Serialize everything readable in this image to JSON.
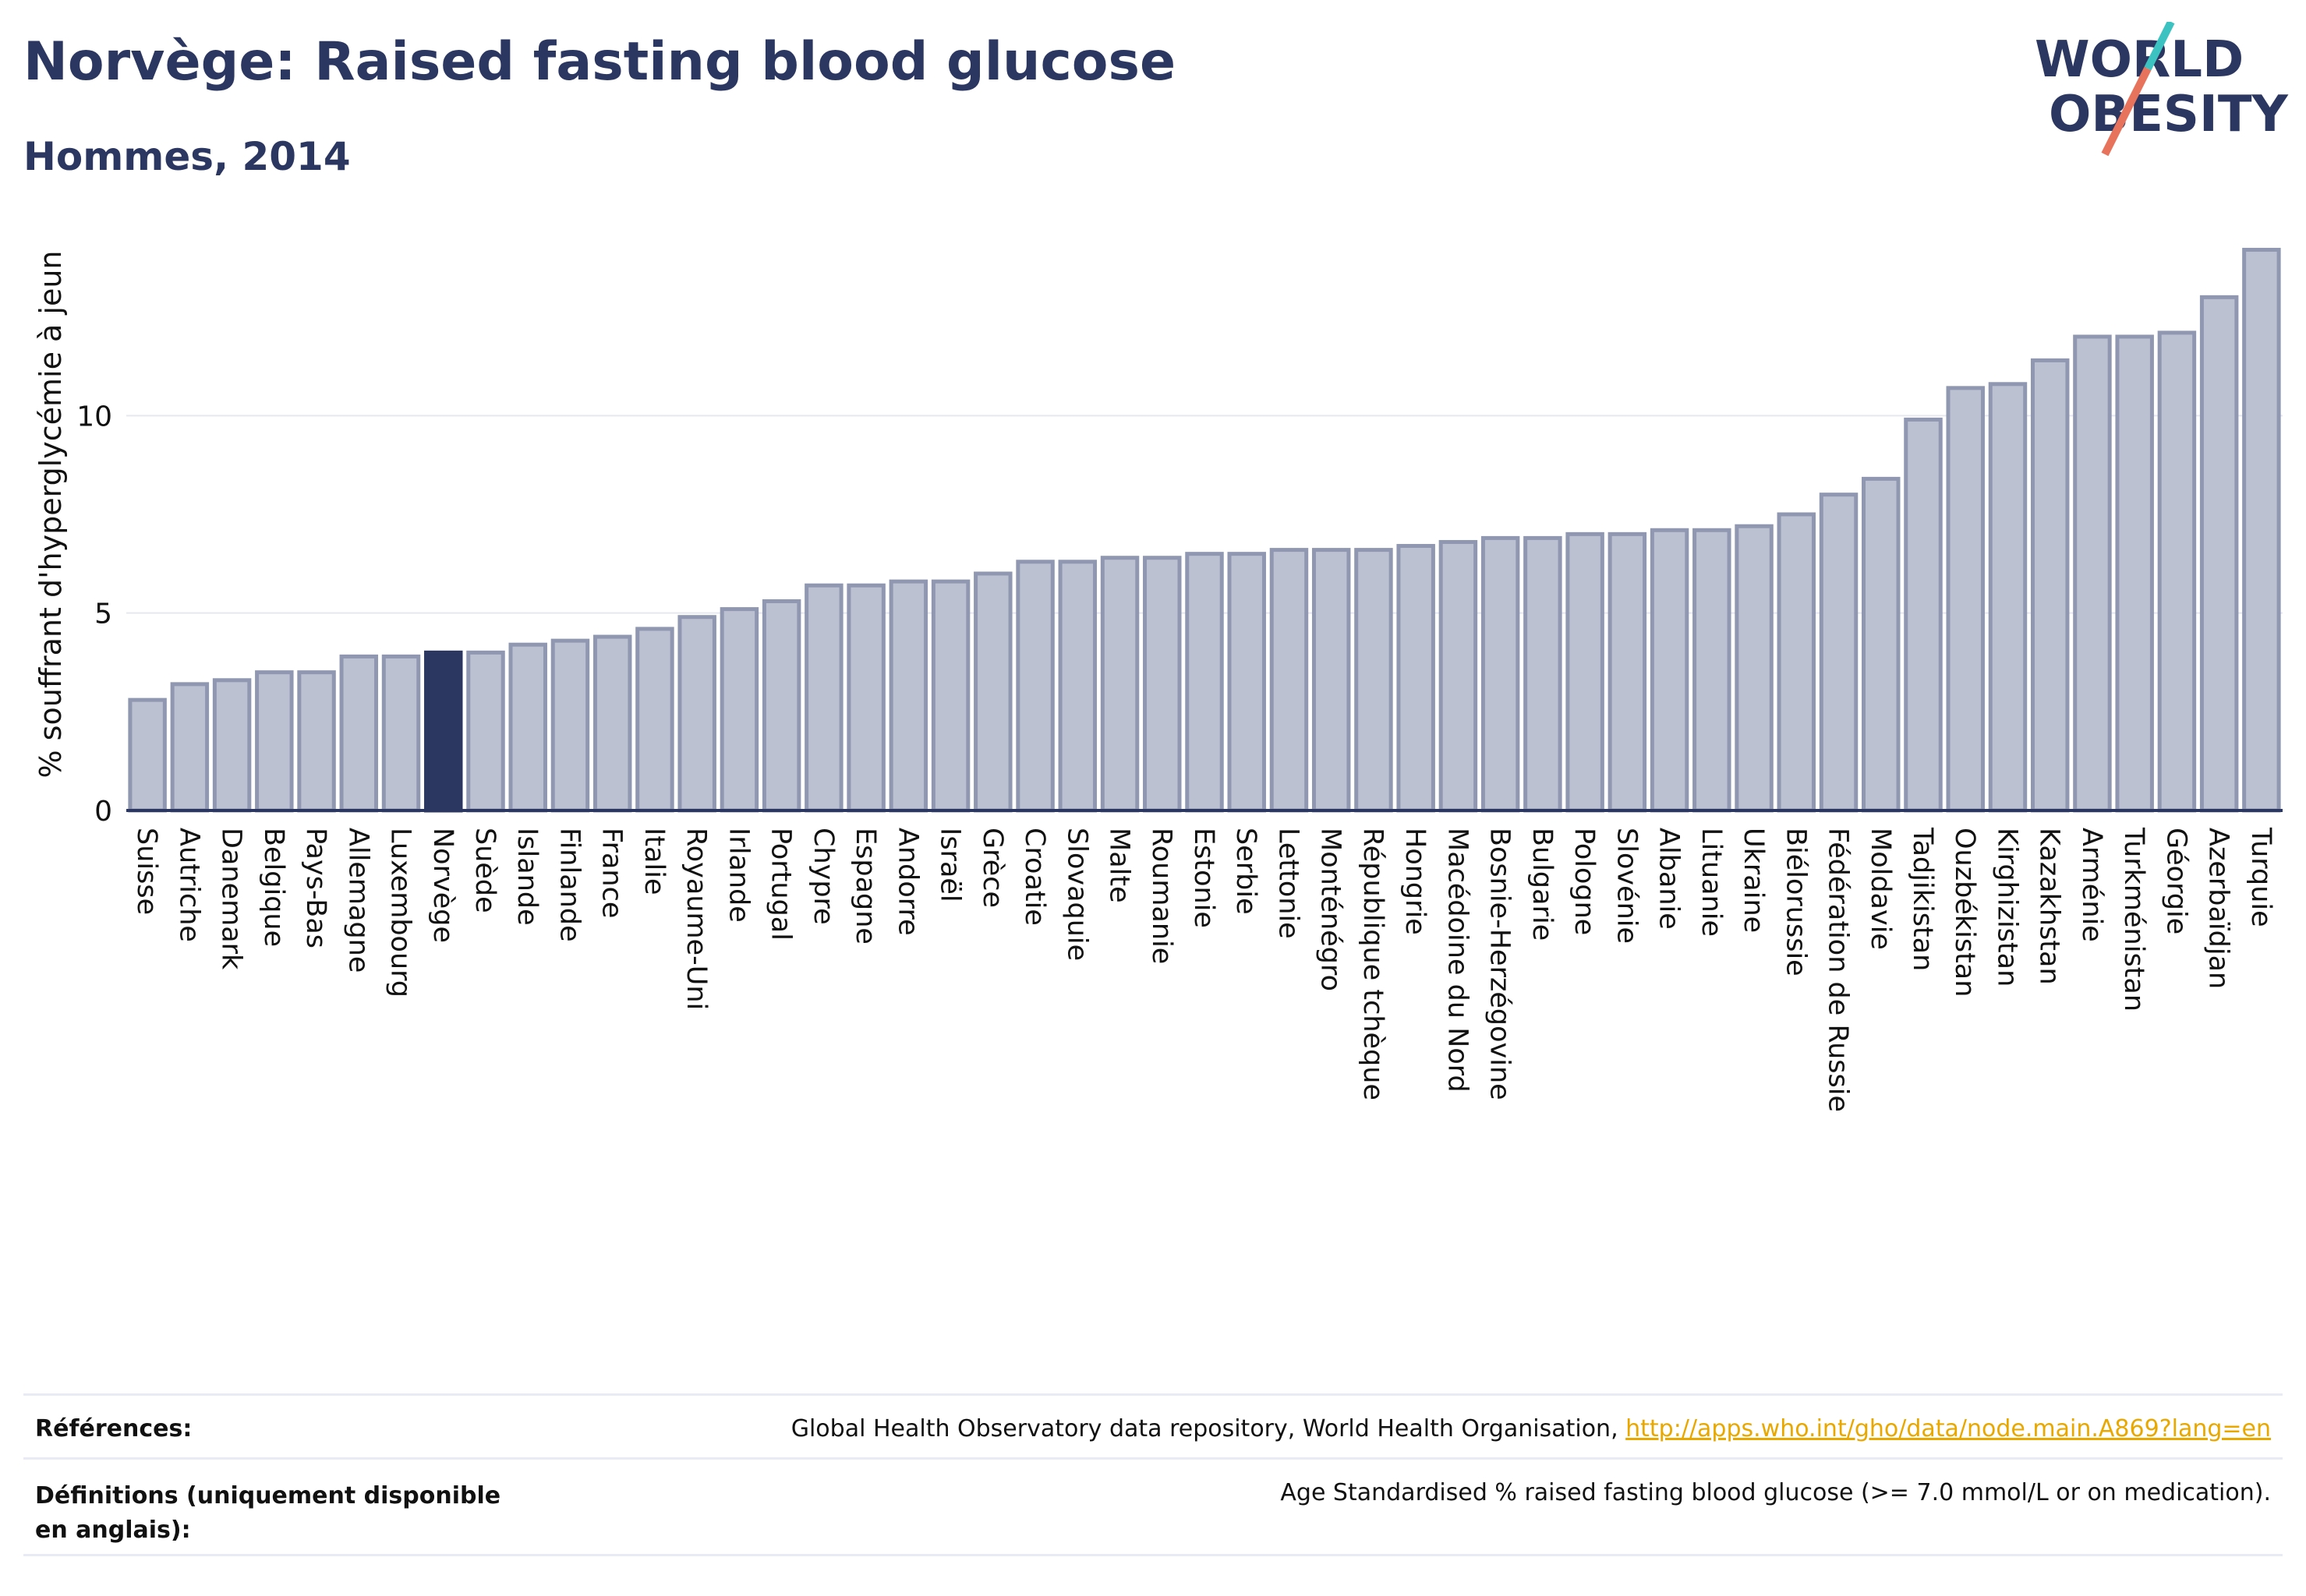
{
  "header": {
    "title": "Norvège: Raised fasting blood glucose",
    "subtitle": "Hommes, 2014"
  },
  "logo": {
    "line1": "WORLD",
    "line2": "OBESITY"
  },
  "colors": {
    "bar": "#bcc1d1",
    "bar_stroke": "#8f97b1",
    "highlight": "#2b3761",
    "text": "#2b3761",
    "grid": "#e6e8ef",
    "link": "#e8a800"
  },
  "chart_data": {
    "type": "bar",
    "title": "Norvège: Raised fasting blood glucose",
    "subtitle": "Hommes, 2014",
    "ylabel": "% souffrant d'hyperglycémie à jeun",
    "xlabel": "",
    "ylim": [
      0,
      15
    ],
    "yticks": [
      0,
      5,
      10
    ],
    "grid": true,
    "highlight": "Norvège",
    "categories": [
      "Suisse",
      "Autriche",
      "Danemark",
      "Belgique",
      "Pays-Bas",
      "Allemagne",
      "Luxembourg",
      "Norvège",
      "Suède",
      "Islande",
      "Finlande",
      "France",
      "Italie",
      "Royaume-Uni",
      "Irlande",
      "Portugal",
      "Chypre",
      "Espagne",
      "Andorre",
      "Israël",
      "Grèce",
      "Croatie",
      "Slovaquie",
      "Malte",
      "Roumanie",
      "Estonie",
      "Serbie",
      "Lettonie",
      "Monténégro",
      "République tchèque",
      "Hongrie",
      "Macédoine du Nord",
      "Bosnie-Herzégovine",
      "Bulgarie",
      "Pologne",
      "Slovénie",
      "Albanie",
      "Lituanie",
      "Ukraine",
      "Biélorussie",
      "Fédération de Russie",
      "Moldavie",
      "Tadjikistan",
      "Ouzbékistan",
      "Kirghizistan",
      "Kazakhstan",
      "Arménie",
      "Turkménistan",
      "Géorgie",
      "Azerbaïdjan",
      "Turquie"
    ],
    "values": [
      2.8,
      3.2,
      3.3,
      3.5,
      3.5,
      3.9,
      3.9,
      4.0,
      4.0,
      4.2,
      4.3,
      4.4,
      4.6,
      4.9,
      5.1,
      5.3,
      5.7,
      5.7,
      5.8,
      5.8,
      6.0,
      6.3,
      6.3,
      6.4,
      6.4,
      6.5,
      6.5,
      6.6,
      6.6,
      6.6,
      6.7,
      6.8,
      6.9,
      6.9,
      7.0,
      7.0,
      7.1,
      7.1,
      7.2,
      7.5,
      8.0,
      8.4,
      9.9,
      10.7,
      10.8,
      11.4,
      12.0,
      12.0,
      12.1,
      13.0,
      14.2
    ]
  },
  "footer": {
    "references_label": "Références:",
    "references_text": "Global Health Observatory data repository, World Health Organisation, ",
    "references_link": "http://apps.who.int/gho/data/node.main.A869?lang=en",
    "definitions_label": "Définitions (uniquement disponible en anglais):",
    "definitions_text": "Age Standardised % raised fasting blood glucose (>= 7.0 mmol/L or on medication)."
  }
}
